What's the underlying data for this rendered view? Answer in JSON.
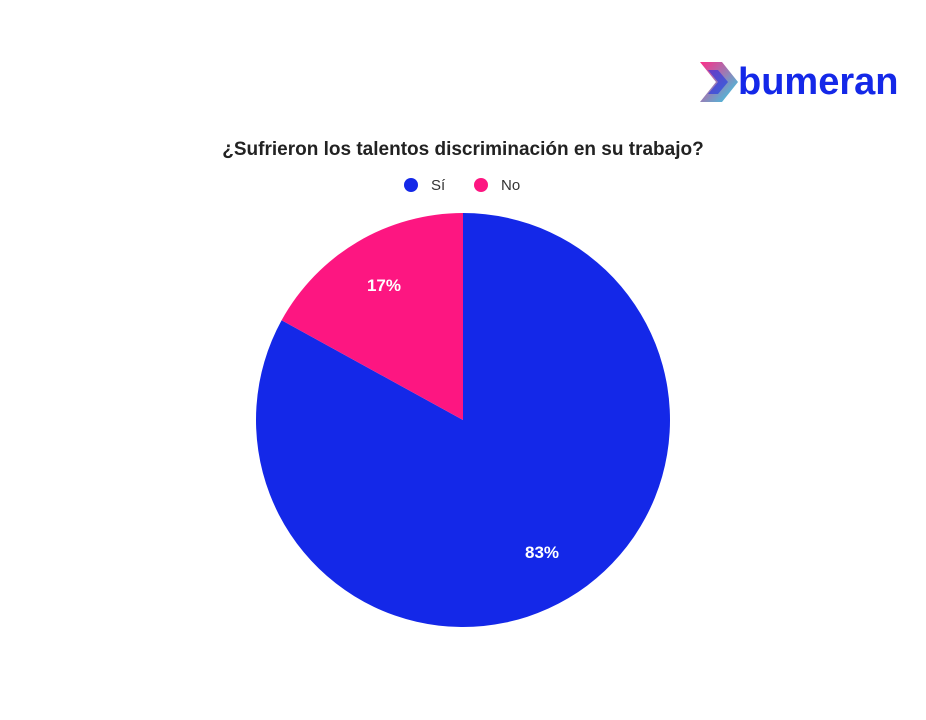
{
  "brand": "bumeran",
  "chart_data": {
    "type": "pie",
    "title": "¿Sufrieron los talentos discriminación en su trabajo?",
    "categories": [
      "Sí",
      "No"
    ],
    "values": [
      83,
      17
    ],
    "value_labels": [
      "83%",
      "17%"
    ],
    "colors": [
      "#1428e8",
      "#fd1681"
    ],
    "legend": "top"
  }
}
